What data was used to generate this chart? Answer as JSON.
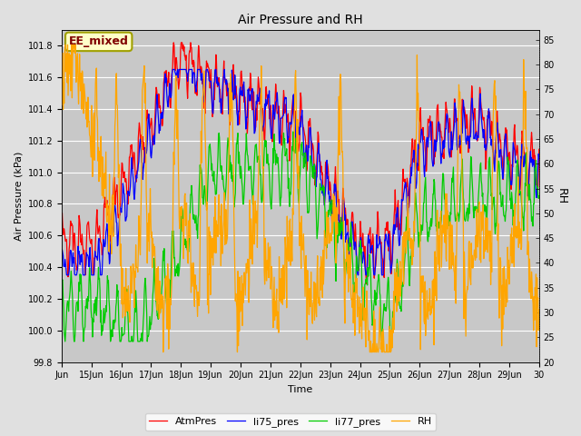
{
  "title": "Air Pressure and RH",
  "xlabel": "Time",
  "ylabel_left": "Air Pressure (kPa)",
  "ylabel_right": "RH",
  "annotation": "EE_mixed",
  "ylim_left": [
    99.8,
    101.9
  ],
  "ylim_right": [
    20,
    87
  ],
  "yticks_left": [
    99.8,
    100.0,
    100.2,
    100.4,
    100.6,
    100.8,
    101.0,
    101.2,
    101.4,
    101.6,
    101.8
  ],
  "yticks_right": [
    20,
    25,
    30,
    35,
    40,
    45,
    50,
    55,
    60,
    65,
    70,
    75,
    80,
    85
  ],
  "xtick_positions": [
    14,
    15,
    16,
    17,
    18,
    19,
    20,
    21,
    22,
    23,
    24,
    25,
    26,
    27,
    28,
    29,
    30
  ],
  "xtick_labels": [
    "Jun",
    "15Jun",
    "16Jun",
    "17Jun",
    "18Jun",
    "19Jun",
    "20Jun",
    "21Jun",
    "22Jun",
    "23Jun",
    "24Jun",
    "25Jun",
    "26Jun",
    "27Jun",
    "28Jun",
    "29Jun",
    "30"
  ],
  "legend_labels": [
    "AtmPres",
    "li75_pres",
    "li77_pres",
    "RH"
  ],
  "line_colors": [
    "#ff0000",
    "#0000ff",
    "#00cc00",
    "#ffa500"
  ],
  "background_color": "#e0e0e0",
  "plot_bg_color": "#c8c8c8",
  "grid_color": "#ffffff",
  "annotation_bg": "#ffffc8",
  "annotation_border": "#a0a000",
  "annotation_text_color": "#800000",
  "x_start": 14.0,
  "x_end": 30.0,
  "figsize": [
    6.4,
    4.8
  ],
  "dpi": 100
}
